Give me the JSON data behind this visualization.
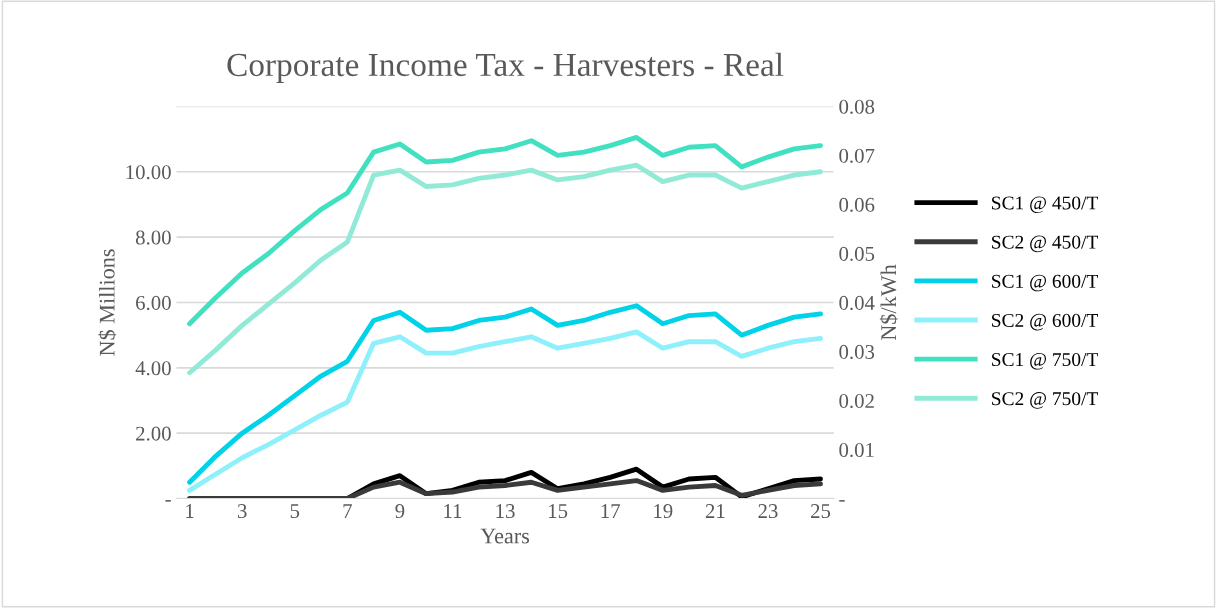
{
  "chart_data": {
    "type": "line",
    "title": "Corporate Income Tax - Harvesters - Real",
    "xlabel": "Years",
    "ylabel": "N$ Millions",
    "y2label": "N$/kWh",
    "categories": [
      "1",
      null,
      "3",
      null,
      "5",
      null,
      "7",
      null,
      "9",
      null,
      "11",
      null,
      "13",
      null,
      "15",
      null,
      "17",
      null,
      "19",
      null,
      "21",
      null,
      "23",
      null,
      "25"
    ],
    "series": [
      {
        "name": "SC1 @ 450/T",
        "color": "#000000",
        "values": [
          0,
          0,
          0,
          0,
          0,
          0,
          0,
          0.45,
          0.7,
          0.15,
          0.25,
          0.5,
          0.55,
          0.8,
          0.3,
          0.45,
          0.65,
          0.9,
          0.35,
          0.6,
          0.65,
          0.05,
          0.3,
          0.55,
          0.6
        ]
      },
      {
        "name": "SC2 @ 450/T",
        "color": "#3a3a3a",
        "values": [
          0,
          0,
          0,
          0,
          0,
          0,
          0,
          0.35,
          0.5,
          0.15,
          0.2,
          0.35,
          0.4,
          0.5,
          0.25,
          0.35,
          0.45,
          0.55,
          0.25,
          0.35,
          0.4,
          0.1,
          0.25,
          0.4,
          0.45
        ]
      },
      {
        "name": "SC1 @ 600/T",
        "color": "#00d2e8",
        "values": [
          0.5,
          1.3,
          2.0,
          2.55,
          3.15,
          3.75,
          4.2,
          5.45,
          5.7,
          5.15,
          5.2,
          5.45,
          5.55,
          5.8,
          5.3,
          5.45,
          5.7,
          5.9,
          5.35,
          5.6,
          5.65,
          5.0,
          5.3,
          5.55,
          5.65
        ]
      },
      {
        "name": "SC2 @ 600/T",
        "color": "#8ef0fa",
        "values": [
          0.25,
          0.75,
          1.25,
          1.65,
          2.1,
          2.55,
          2.95,
          4.75,
          4.95,
          4.45,
          4.45,
          4.65,
          4.8,
          4.95,
          4.6,
          4.75,
          4.9,
          5.1,
          4.6,
          4.8,
          4.8,
          4.35,
          4.6,
          4.8,
          4.9
        ]
      },
      {
        "name": "SC1 @ 750/T",
        "color": "#40e0c0",
        "values": [
          5.35,
          6.15,
          6.9,
          7.5,
          8.2,
          8.85,
          9.35,
          10.6,
          10.85,
          10.3,
          10.35,
          10.6,
          10.7,
          10.95,
          10.5,
          10.6,
          10.8,
          11.05,
          10.5,
          10.75,
          10.8,
          10.15,
          10.45,
          10.7,
          10.8
        ]
      },
      {
        "name": "SC2 @ 750/T",
        "color": "#90ead6",
        "values": [
          3.85,
          4.55,
          5.3,
          5.95,
          6.6,
          7.3,
          7.85,
          9.9,
          10.05,
          9.55,
          9.6,
          9.8,
          9.9,
          10.05,
          9.75,
          9.85,
          10.05,
          10.2,
          9.7,
          9.9,
          9.9,
          9.5,
          9.7,
          9.9,
          10.0
        ]
      }
    ],
    "ylim": [
      0,
      12
    ],
    "yticks": [
      {
        "value": 0,
        "label": "-"
      },
      {
        "value": 2,
        "label": "2.00"
      },
      {
        "value": 4,
        "label": "4.00"
      },
      {
        "value": 6,
        "label": "6.00"
      },
      {
        "value": 8,
        "label": "8.00"
      },
      {
        "value": 10,
        "label": "10.00"
      },
      {
        "value": 12,
        "label": null
      }
    ],
    "y2lim": [
      0,
      0.08
    ],
    "y2ticks": [
      {
        "value": 0,
        "label": "-"
      },
      0.01,
      0.02,
      0.03,
      0.04,
      0.05,
      0.06,
      0.07,
      0.08
    ],
    "grid": "y",
    "legend": "right",
    "marker": "none",
    "line_style": "solid"
  }
}
